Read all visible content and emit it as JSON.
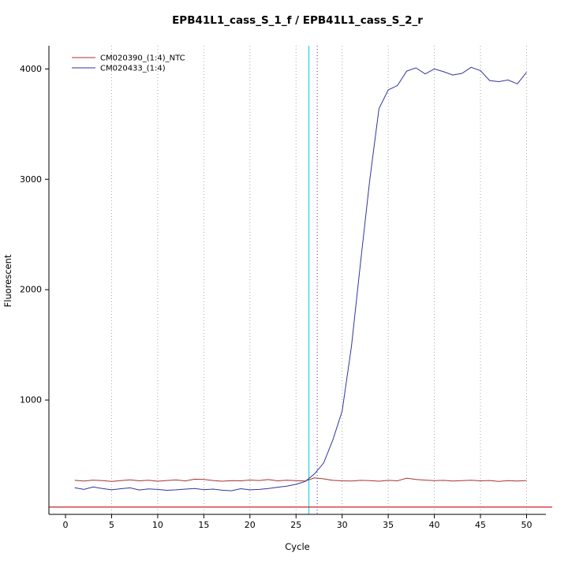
{
  "title": "EPB41L1_cass_S_1_f / EPB41L1_cass_S_2_r",
  "chart_data": {
    "type": "line",
    "title": "EPB41L1_cass_S_1_f / EPB41L1_cass_S_2_r",
    "xlabel": "Cycle",
    "ylabel": "Fluorescent",
    "x_range": [
      -1.8,
      52.1
    ],
    "y_range": [
      -36,
      4210
    ],
    "xticks": [
      0,
      5,
      10,
      15,
      20,
      25,
      30,
      35,
      40,
      45,
      50
    ],
    "yticks": [
      1000,
      2000,
      3000,
      4000
    ],
    "grid": {
      "vertical_dotted_at": [
        5,
        10,
        15,
        20,
        25,
        30,
        35,
        40,
        45,
        50
      ],
      "color": "#a8a8a8"
    },
    "x": [
      1,
      2,
      3,
      4,
      5,
      6,
      7,
      8,
      9,
      10,
      11,
      12,
      13,
      14,
      15,
      16,
      17,
      18,
      19,
      20,
      21,
      22,
      23,
      24,
      25,
      26,
      27,
      28,
      29,
      30,
      31,
      32,
      33,
      34,
      35,
      36,
      37,
      38,
      39,
      40,
      41,
      42,
      43,
      44,
      45,
      46,
      47,
      48,
      49,
      50
    ],
    "series": [
      {
        "name": "CM020390_(1:4)_NTC",
        "color": "#a83232",
        "values": [
          272,
          266,
          274,
          270,
          262,
          270,
          277,
          268,
          273,
          264,
          271,
          276,
          267,
          283,
          280,
          271,
          264,
          270,
          268,
          275,
          271,
          279,
          268,
          273,
          270,
          266,
          294,
          286,
          272,
          268,
          266,
          272,
          270,
          264,
          272,
          268,
          292,
          281,
          274,
          269,
          272,
          266,
          269,
          273,
          268,
          271,
          263,
          269,
          266,
          271
        ]
      },
      {
        "name": "CM020433_(1:4)",
        "color": "#3333a0",
        "values": [
          205,
          190,
          212,
          198,
          186,
          196,
          204,
          185,
          194,
          190,
          182,
          186,
          193,
          198,
          188,
          193,
          183,
          178,
          196,
          186,
          190,
          198,
          210,
          220,
          236,
          262,
          330,
          430,
          640,
          900,
          1480,
          2250,
          3000,
          3640,
          3810,
          3850,
          3980,
          4010,
          3955,
          4000,
          3975,
          3945,
          3960,
          4015,
          3985,
          3895,
          3885,
          3900,
          3865,
          3970
        ]
      }
    ],
    "threshold_line": {
      "y": 30,
      "color": "#cc2222"
    },
    "ct_line_solid": {
      "x": 26.4,
      "color": "#00cccc"
    },
    "ct_line_dotted": {
      "x": 27.3,
      "color": "#3333a0"
    },
    "legend": {
      "position": "top-left"
    }
  }
}
